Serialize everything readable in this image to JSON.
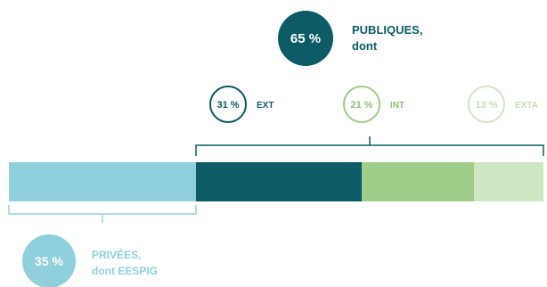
{
  "chart_data": {
    "type": "bar",
    "subtype": "stacked-horizontal",
    "unit": "%",
    "total": 100,
    "segments": [
      {
        "id": "privees",
        "value": 35,
        "color": "#8fd0dc"
      },
      {
        "id": "ext",
        "value": 31,
        "color": "#0c5b66"
      },
      {
        "id": "int",
        "value": 21,
        "color": "#9fce8a"
      },
      {
        "id": "exta",
        "value": 13,
        "color": "#cfe6c3"
      }
    ],
    "groups": {
      "publiques": {
        "percent_label": "65 %",
        "label_line1": "PUBLIQUES,",
        "label_line2": "dont",
        "color": "#0c5b66"
      },
      "privees": {
        "percent_label": "35 %",
        "label_line1": "PRIVÉES,",
        "label_line2": "dont EESPIG",
        "color": "#8fd0dc"
      }
    },
    "sub_labels": [
      {
        "percent_label": "31 %",
        "label": "EXT",
        "color": "#0c5b66",
        "text_color": "#0c5b66"
      },
      {
        "percent_label": "21 %",
        "label": "INT",
        "color": "#9fce8a",
        "text_color": "#8cc277"
      },
      {
        "percent_label": "13 %",
        "label": "EXTA",
        "color": "#cfe6c3",
        "text_color": "#c4e0b6"
      }
    ]
  }
}
